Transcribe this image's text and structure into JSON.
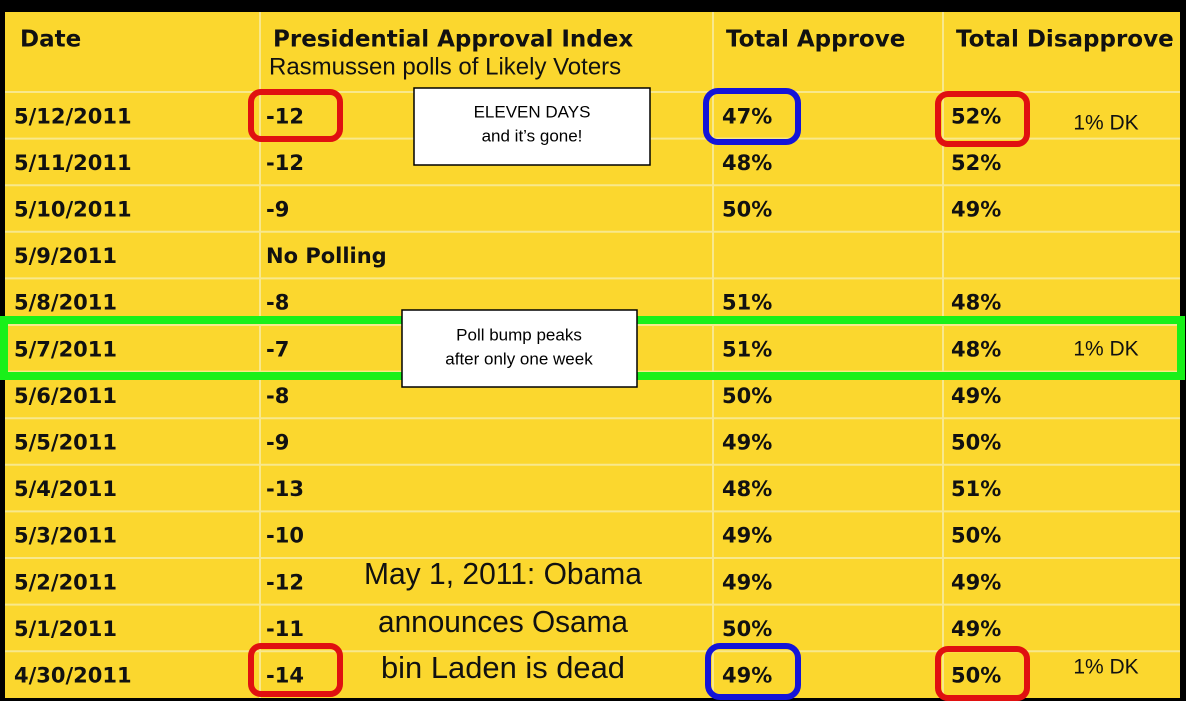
{
  "table": {
    "headers": [
      "Date",
      "Presidential Approval Index",
      "Total Approve",
      "Total Disapprove"
    ],
    "subtitle": "Rasmussen polls of Likely Voters",
    "rows": [
      {
        "date": "5/12/2011",
        "index": "-12",
        "approve": "47%",
        "disapprove": "52%"
      },
      {
        "date": "5/11/2011",
        "index": "-12",
        "approve": "48%",
        "disapprove": "52%"
      },
      {
        "date": "5/10/2011",
        "index": "-9",
        "approve": "50%",
        "disapprove": "49%"
      },
      {
        "date": "5/9/2011",
        "index": "No Polling"
      },
      {
        "date": "5/8/2011",
        "index": "-8",
        "approve": "51%",
        "disapprove": "48%"
      },
      {
        "date": "5/7/2011",
        "index": "-7",
        "approve": "51%",
        "disapprove": "48%"
      },
      {
        "date": "5/6/2011",
        "index": "-8",
        "approve": "50%",
        "disapprove": "49%"
      },
      {
        "date": "5/5/2011",
        "index": "-9",
        "approve": "49%",
        "disapprove": "50%"
      },
      {
        "date": "5/4/2011",
        "index": "-13",
        "approve": "48%",
        "disapprove": "51%"
      },
      {
        "date": "5/3/2011",
        "index": "-10",
        "approve": "49%",
        "disapprove": "50%"
      },
      {
        "date": "5/2/2011",
        "index": "-12",
        "approve": "49%",
        "disapprove": "49%"
      },
      {
        "date": "5/1/2011",
        "index": "-11",
        "approve": "50%",
        "disapprove": "49%"
      },
      {
        "date": "4/30/2011",
        "index": "-14",
        "approve": "49%",
        "disapprove": "50%"
      }
    ]
  },
  "annotations": {
    "dk_notes": [
      "1% DK",
      "1% DK",
      "1% DK"
    ],
    "eleven_days": [
      "ELEVEN DAYS",
      "and it’s gone!"
    ],
    "bump": [
      "Poll bump peaks",
      "after only one week"
    ],
    "announcement": [
      "May 1, 2011: Obama",
      "announces Osama",
      "bin  Laden is dead"
    ]
  }
}
